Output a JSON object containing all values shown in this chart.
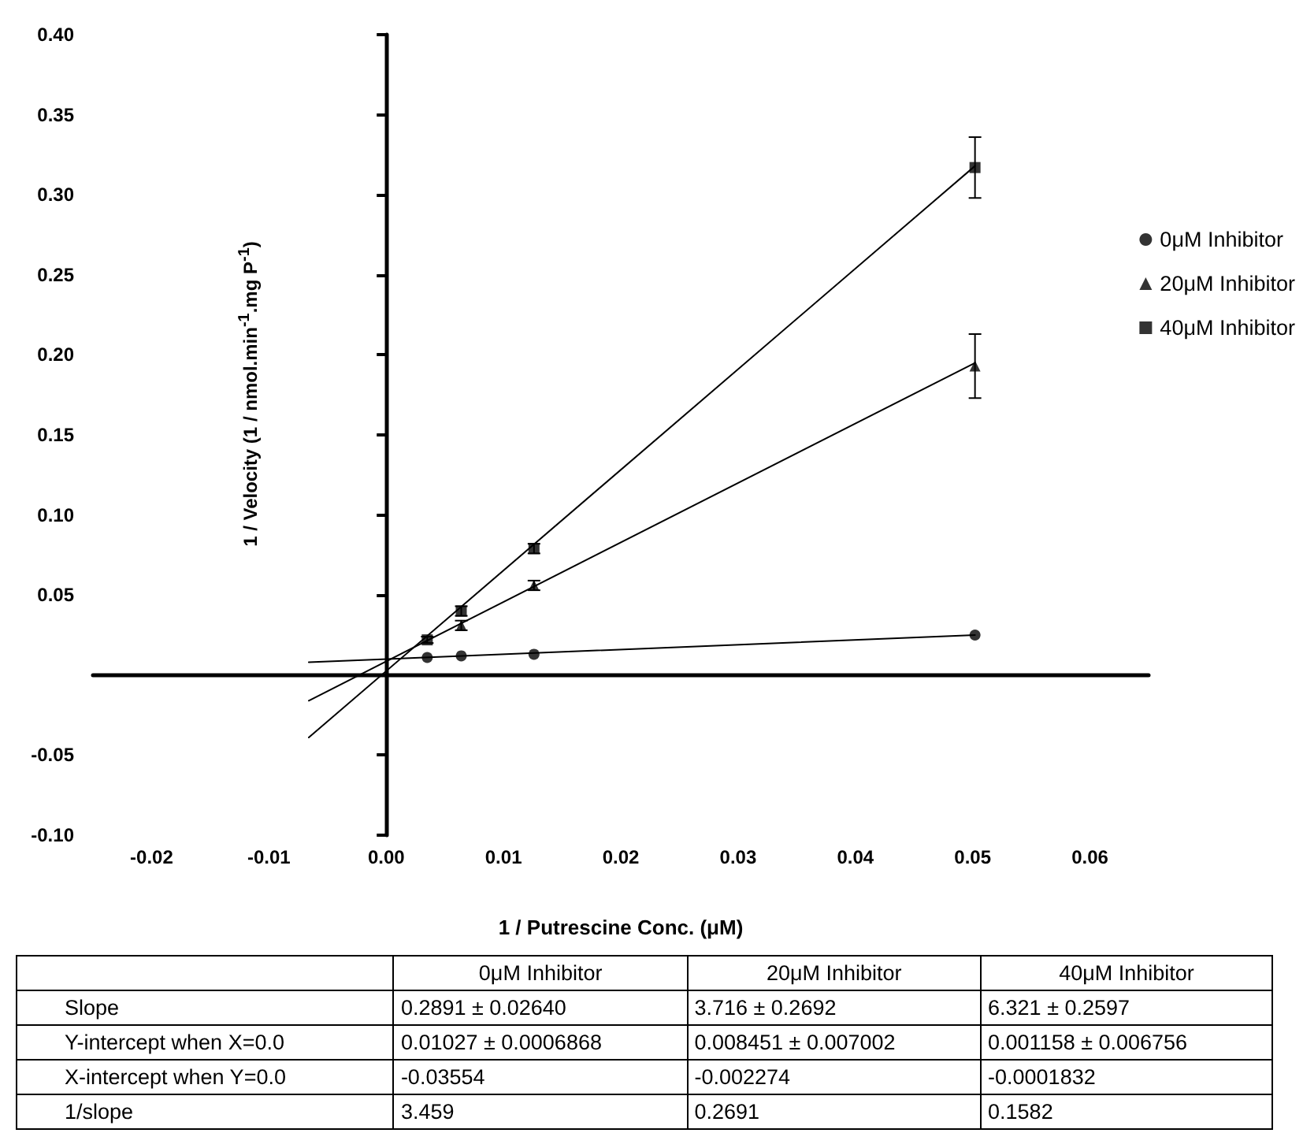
{
  "chart_data": {
    "type": "scatter",
    "xlabel": "1 / Putrescine Conc. (μM)",
    "ylabel": "1 / Velocity (1 / nmol.min$^{-1}$.mg P$^{-1}$)",
    "xlim": [
      -0.025,
      0.065
    ],
    "xticks": [
      {
        "value": -0.02,
        "label": "-0.02"
      },
      {
        "value": -0.01,
        "label": "-0.01"
      },
      {
        "value": 0,
        "label": "0.00"
      },
      {
        "value": 0.01,
        "label": "0.01"
      },
      {
        "value": 0.02,
        "label": "0.02"
      },
      {
        "value": 0.03,
        "label": "0.03"
      },
      {
        "value": 0.04,
        "label": "0.04"
      },
      {
        "value": 0.05,
        "label": "0.05"
      },
      {
        "value": 0.06,
        "label": "0.06"
      }
    ],
    "ylim": [
      -0.1,
      0.4
    ],
    "yticks": [
      {
        "value": -0.1,
        "label": "-0.10"
      },
      {
        "value": -0.05,
        "label": "-0.05"
      },
      {
        "value": 0.05,
        "label": "0.05"
      },
      {
        "value": 0.1,
        "label": "0.10"
      },
      {
        "value": 0.15,
        "label": "0.15"
      },
      {
        "value": 0.2,
        "label": "0.20"
      },
      {
        "value": 0.25,
        "label": "0.25"
      },
      {
        "value": 0.3,
        "label": "0.30"
      },
      {
        "value": 0.35,
        "label": "0.35"
      },
      {
        "value": 0.4,
        "label": "0.40"
      }
    ],
    "legend": "right",
    "series": [
      {
        "name": "0μM Inhibitor",
        "marker": "circle",
        "color": "#000000",
        "x": [
          0.0035,
          0.0064,
          0.0126,
          0.0502
        ],
        "values": [
          0.011,
          0.012,
          0.013,
          0.025
        ]
      },
      {
        "name": "20μM Inhibitor",
        "marker": "triangle",
        "color": "#000000",
        "x": [
          0.0064,
          0.0126,
          0.0502
        ],
        "values": [
          0.031,
          0.056,
          0.193
        ],
        "errors": [
          0.003,
          0.003,
          0.02
        ]
      },
      {
        "name": "40μM Inhibitor",
        "marker": "square",
        "color": "#000000",
        "x": [
          0.0035,
          0.0064,
          0.0126,
          0.0502
        ],
        "values": [
          0.022,
          0.04,
          0.079,
          0.317
        ],
        "errors": [
          0.002,
          0.003,
          0.003,
          0.019
        ]
      },
      {
        "type": "line",
        "marker": "none",
        "color": "#000000",
        "x": [
          -0.0066,
          0.0502
        ],
        "values": [
          0.008,
          0.025
        ]
      },
      {
        "type": "line",
        "marker": "none",
        "color": "#000000",
        "x": [
          -0.0066,
          0.0502
        ],
        "values": [
          -0.016,
          0.195
        ]
      },
      {
        "type": "line",
        "marker": "none",
        "color": "#000000",
        "x": [
          -0.0066,
          0.0502
        ],
        "values": [
          -0.039,
          0.318
        ]
      }
    ],
    "annotations": [
      "Slope",
      "0.2891 ± 0.02640",
      "3.716 ± 0.2692",
      "6.321 ± 0.2597",
      "Y-intercept when X=0.0",
      "0.01027 ± 0.0006868",
      "0.008451 ± 0.007002",
      "0.001158 ± 0.006756",
      "X-intercept when Y=0.0",
      "-0.03554",
      "-0.002274",
      "-0.0001832",
      "1/slope",
      "3.459",
      "0.2691",
      "0.1582"
    ]
  }
}
